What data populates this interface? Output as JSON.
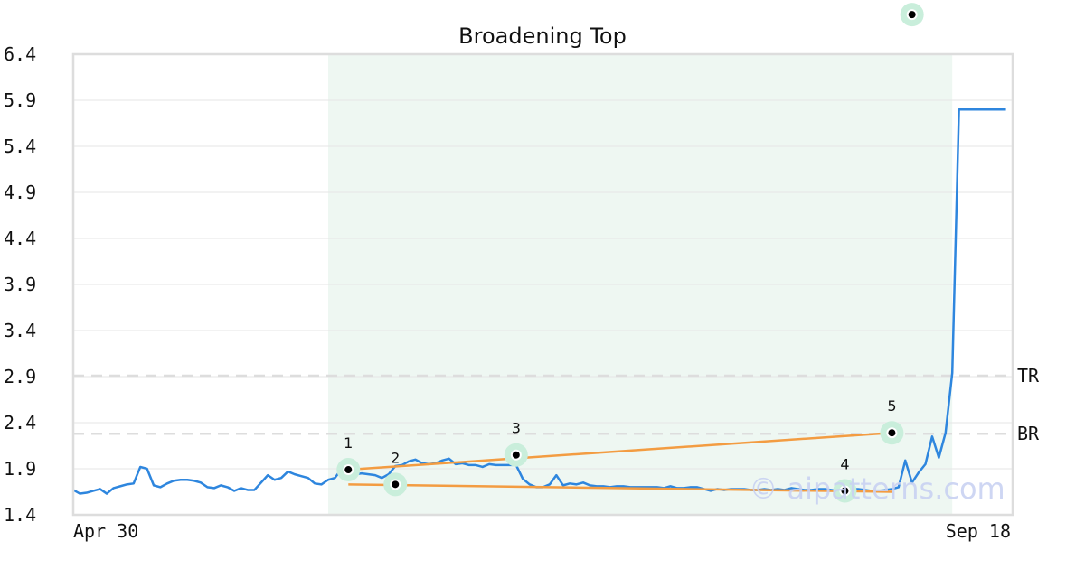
{
  "chart_data": {
    "type": "line",
    "title": "Broadening Top",
    "xlabel": "",
    "ylabel": "",
    "x_tick_labels": [
      "Apr 30",
      "Sep 18"
    ],
    "x_range": [
      0,
      140
    ],
    "y_ticks": [
      "1.4",
      "1.9",
      "2.4",
      "2.9",
      "3.4",
      "3.9",
      "4.4",
      "4.9",
      "5.4",
      "5.9",
      "6.4"
    ],
    "ylim": [
      1.4,
      6.4
    ],
    "grid": true,
    "series": [
      {
        "values": [
          1.67,
          1.63,
          1.64,
          1.66,
          1.68,
          1.63,
          1.69,
          1.71,
          1.73,
          1.74,
          1.92,
          1.9,
          1.72,
          1.7,
          1.74,
          1.77,
          1.78,
          1.78,
          1.77,
          1.75,
          1.7,
          1.69,
          1.72,
          1.7,
          1.66,
          1.69,
          1.67,
          1.67,
          1.75,
          1.83,
          1.78,
          1.8,
          1.87,
          1.84,
          1.82,
          1.8,
          1.74,
          1.73,
          1.78,
          1.8,
          1.9,
          1.89,
          1.84,
          1.85,
          1.84,
          1.83,
          1.8,
          1.84,
          1.93,
          1.94,
          1.98,
          2.0,
          1.96,
          1.95,
          1.96,
          1.99,
          2.01,
          1.95,
          1.96,
          1.94,
          1.94,
          1.92,
          1.95,
          1.94,
          1.94,
          1.94,
          1.94,
          1.79,
          1.73,
          1.7,
          1.7,
          1.73,
          1.83,
          1.72,
          1.74,
          1.73,
          1.75,
          1.72,
          1.71,
          1.71,
          1.7,
          1.71,
          1.71,
          1.7,
          1.7,
          1.7,
          1.7,
          1.7,
          1.69,
          1.71,
          1.69,
          1.69,
          1.7,
          1.7,
          1.68,
          1.66,
          1.68,
          1.67,
          1.68,
          1.68,
          1.68,
          1.67,
          1.67,
          1.68,
          1.67,
          1.68,
          1.67,
          1.69,
          1.68,
          1.67,
          1.67,
          1.68,
          1.68,
          1.67,
          1.66,
          1.67,
          1.68,
          1.68,
          1.67,
          1.66,
          1.66,
          1.67,
          1.68,
          1.7,
          1.99,
          1.75,
          1.86,
          1.95,
          2.25,
          2.02,
          2.29,
          2.94,
          5.8,
          5.8,
          5.8,
          5.8,
          5.8,
          5.8,
          5.8,
          5.8
        ],
        "color": "#2e86de"
      }
    ],
    "highlight_region": {
      "x_start": 38,
      "x_end": 131,
      "color": "#eef7f2"
    },
    "reference_lines": [
      {
        "label": "TR",
        "value": 2.91,
        "color": "#dddddd"
      },
      {
        "label": "BR",
        "value": 2.28,
        "color": "#dddddd"
      }
    ],
    "pattern_lines": [
      {
        "from": [
          41,
          1.89
        ],
        "to": [
          122,
          2.29
        ],
        "color": "#f39c42"
      },
      {
        "from": [
          41,
          1.73
        ],
        "to": [
          122,
          1.65
        ],
        "color": "#f39c42"
      }
    ],
    "pattern_points": [
      {
        "label": "1",
        "x": 41,
        "y": 1.89,
        "label_side": "above"
      },
      {
        "label": "2",
        "x": 48,
        "y": 1.73,
        "label_side": "above"
      },
      {
        "label": "3",
        "x": 66,
        "y": 2.05,
        "label_side": "above"
      },
      {
        "label": "4",
        "x": 115,
        "y": 1.66,
        "label_side": "above"
      },
      {
        "label": "5",
        "x": 122,
        "y": 2.29,
        "label_side": "above"
      }
    ],
    "extra_marker": {
      "x": 125,
      "y": 6.83
    },
    "watermark": "© aipatterns.com"
  }
}
